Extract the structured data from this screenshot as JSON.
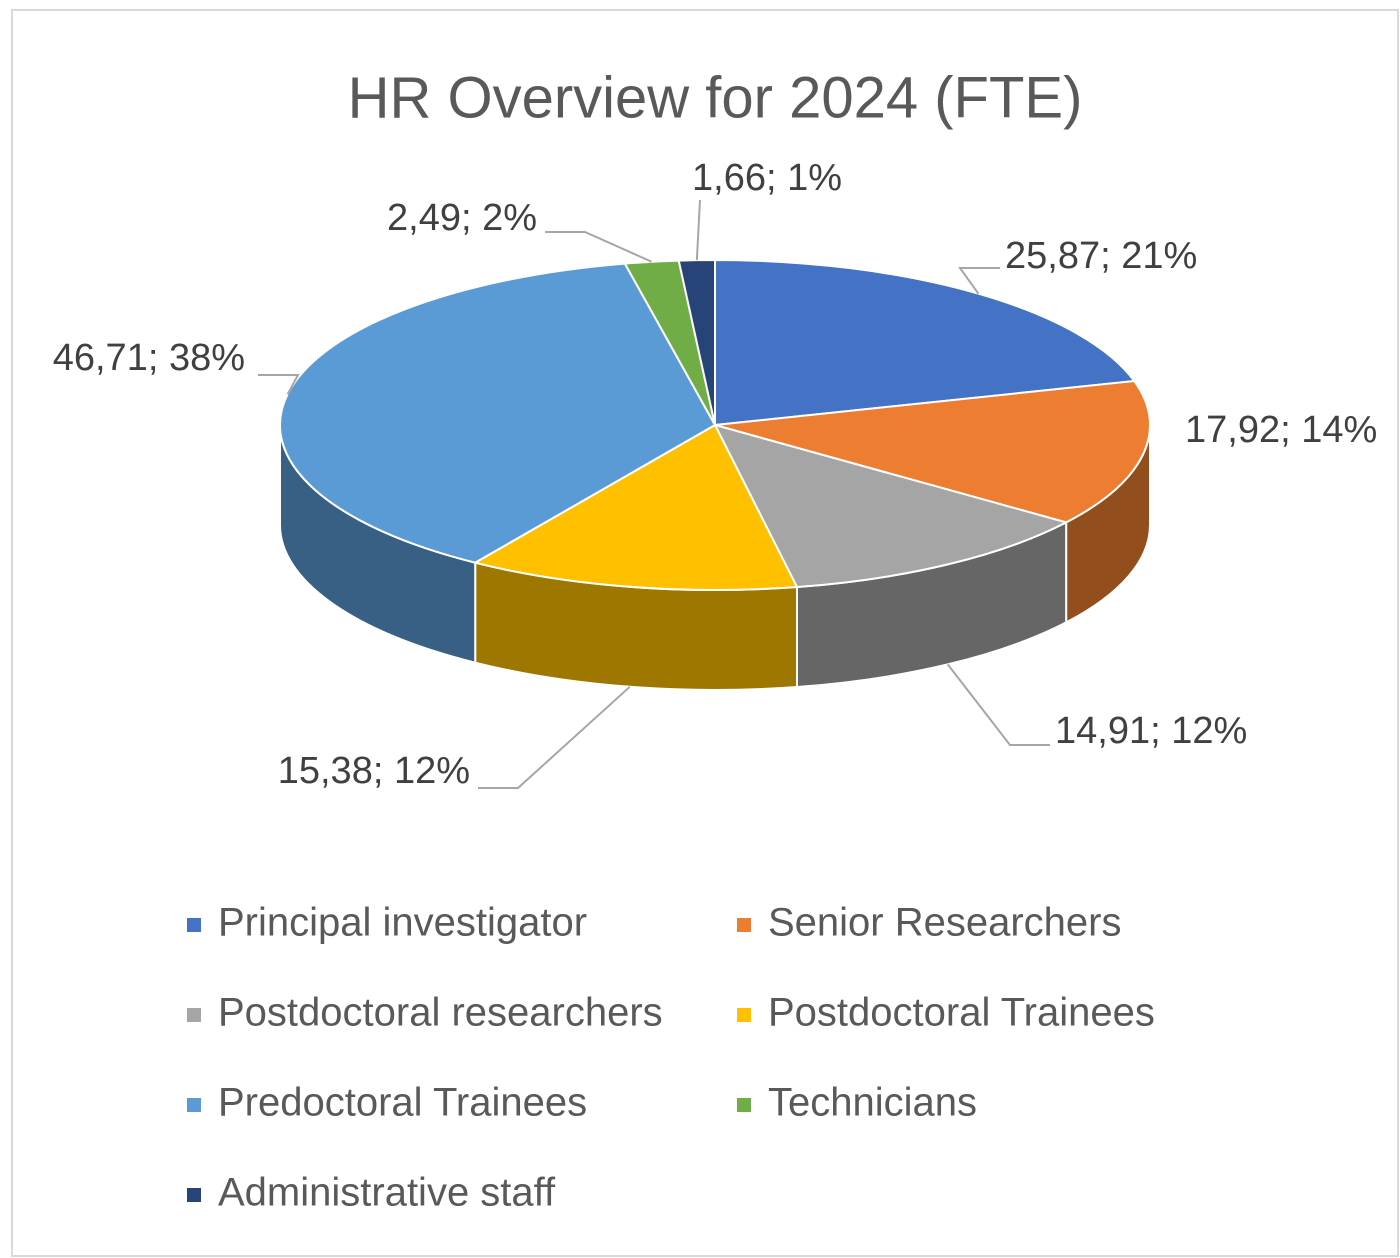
{
  "chart_data": {
    "type": "pie",
    "title": "HR Overview for 2024 (FTE)",
    "categories": [
      "Principal investigator",
      "Senior Researchers",
      "Postdoctoral researchers",
      "Postdoctoral Trainees",
      "Predoctoral Trainees",
      "Technicians",
      "Administrative staff"
    ],
    "values": [
      25.87,
      17.92,
      14.91,
      15.38,
      46.71,
      2.49,
      1.66
    ],
    "value_labels": [
      "25,87; 21%",
      "17,92; 14%",
      "14,91; 12%",
      "15,38; 12%",
      "46,71; 38%",
      "2,49; 2%",
      "1,66; 1%"
    ],
    "colors": [
      "#4472c4",
      "#ed7d31",
      "#a5a5a5",
      "#ffc000",
      "#5b9bd5",
      "#70ad47",
      "#264478"
    ],
    "legend": "bottom"
  }
}
